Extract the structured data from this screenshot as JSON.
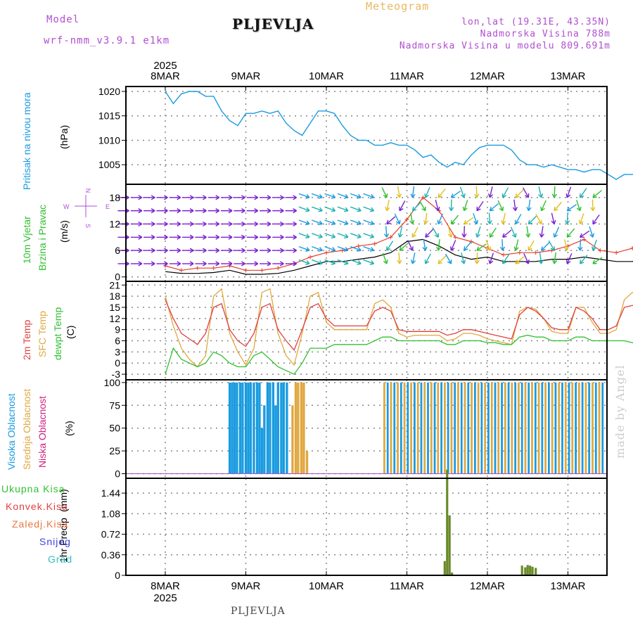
{
  "header": {
    "model_label": "Model",
    "model_name": "wrf-nmm_v3.9.1 e1km",
    "title": "PLJEVLJA",
    "subtitle": "Meteogram",
    "lonlat": "lon,lat (19.31E, 43.35N)",
    "elevation": "Nadmorska Visina 788m",
    "model_elevation": "Nadmorska Visina u modelu 809.691m"
  },
  "footer": {
    "station": "PLJEVLJA",
    "credit": "made by Angel"
  },
  "time_axis": {
    "year": "2025",
    "labels": [
      "8MAR",
      "9MAR",
      "10MAR",
      "11MAR",
      "12MAR",
      "13MAR"
    ]
  },
  "colors": {
    "pressure": "#1a9be0",
    "wind_speed": "#000000",
    "wind_gust": "#e04030",
    "temp_2m": "#e04040",
    "temp_sfc": "#e0a840",
    "dewpoint": "#30c030",
    "cloud_high": "#1a9be0",
    "cloud_mid": "#e0a840",
    "cloud_low": "#d02080",
    "precip_total": "#30c030",
    "precip_conv": "#e04040",
    "precip_snow": "#4040e0"
  },
  "chart_data": [
    {
      "type": "line",
      "ylabel": "Pritisak na nivou mora",
      "unit": "(hPa)",
      "ylim": [
        1001,
        1021
      ],
      "yticks": [
        1005,
        1010,
        1015,
        1020
      ],
      "grid": true,
      "x_days": [
        0,
        0.1,
        0.2,
        0.3,
        0.4,
        0.5,
        0.6,
        0.7,
        0.8,
        0.9,
        1.0,
        1.1,
        1.2,
        1.3,
        1.4,
        1.5,
        1.6,
        1.7,
        1.8,
        1.9,
        2.0,
        2.1,
        2.2,
        2.3,
        2.4,
        2.5,
        2.6,
        2.7,
        2.8,
        2.9,
        3.0,
        3.1,
        3.2,
        3.3,
        3.4,
        3.5,
        3.6,
        3.7,
        3.8,
        3.9,
        4.0,
        4.1,
        4.2,
        4.3,
        4.4,
        4.5,
        4.6,
        4.7,
        4.8,
        4.9,
        5.0,
        5.1,
        5.2,
        5.3,
        5.4,
        5.5,
        5.6,
        5.7,
        5.8,
        5.9,
        6.0
      ],
      "series": [
        {
          "values": [
            1020,
            1017.5,
            1019.5,
            1020,
            1020,
            1019,
            1019,
            1016,
            1014,
            1013,
            1015.5,
            1015.5,
            1016,
            1015.5,
            1016,
            1013.5,
            1012,
            1011,
            1013.5,
            1016,
            1016,
            1015.5,
            1013,
            1011,
            1010,
            1010,
            1009,
            1009,
            1009.5,
            1009,
            1009,
            1008,
            1006.5,
            1007,
            1005.5,
            1004.5,
            1005.5,
            1005,
            1007,
            1008.5,
            1009,
            1009,
            1009,
            1008,
            1006,
            1005,
            1005,
            1004.5,
            1005,
            1004.5,
            1004,
            1004,
            1003.5,
            1004,
            1004,
            1003,
            1002,
            1003,
            1003,
            1003.5,
            1004
          ]
        }
      ]
    },
    {
      "type": "line",
      "ylabel": "10m Vjetar Brzina i Pravac",
      "unit": "(m/s)",
      "compass": {
        "n": "N",
        "s": "S",
        "e": "E",
        "w": "W"
      },
      "ylim": [
        -1,
        21
      ],
      "yticks": [
        0,
        6,
        12,
        18
      ],
      "grid": true,
      "x_days": [
        0,
        0.2,
        0.4,
        0.6,
        0.8,
        1.0,
        1.2,
        1.4,
        1.6,
        1.8,
        2.0,
        2.2,
        2.4,
        2.6,
        2.8,
        3.0,
        3.2,
        3.4,
        3.6,
        3.8,
        4.0,
        4.2,
        4.4,
        4.6,
        4.8,
        5.0,
        5.2,
        5.4,
        5.6,
        5.8,
        6.0
      ],
      "series": [
        {
          "name": "speed",
          "values": [
            1.2,
            0.8,
            0.8,
            1.0,
            1.5,
            0.6,
            0.6,
            0.8,
            1.5,
            2.5,
            3.5,
            3.5,
            4.0,
            4.5,
            5.5,
            8.0,
            8.5,
            7.0,
            5.0,
            4.0,
            4.5,
            3.5,
            3.5,
            3.5,
            4.0,
            4.0,
            4.5,
            4.0,
            3.5,
            3.5,
            5.0
          ]
        },
        {
          "name": "gust",
          "values": [
            2.5,
            1.5,
            2.0,
            2.0,
            2.5,
            1.5,
            1.5,
            2.0,
            3.0,
            4.5,
            5.5,
            6.0,
            7.0,
            7.5,
            9.0,
            13.0,
            18.0,
            15.0,
            9.0,
            8.0,
            6.5,
            5.0,
            5.5,
            5.5,
            6.0,
            7.0,
            8.5,
            6.0,
            5.5,
            6.5,
            9.0
          ]
        }
      ]
    },
    {
      "type": "line",
      "ylabels": [
        "2m Temp",
        "SFC Temp",
        "dewpt Temp"
      ],
      "unit": "(C)",
      "ylim": [
        -4.5,
        22
      ],
      "yticks": [
        -3,
        0,
        3,
        6,
        9,
        12,
        15,
        18,
        21
      ],
      "grid": true,
      "x_days": [
        0,
        0.1,
        0.2,
        0.3,
        0.4,
        0.5,
        0.6,
        0.7,
        0.8,
        0.9,
        1.0,
        1.1,
        1.2,
        1.3,
        1.4,
        1.5,
        1.6,
        1.7,
        1.8,
        1.9,
        2.0,
        2.1,
        2.2,
        2.3,
        2.4,
        2.5,
        2.6,
        2.7,
        2.8,
        2.9,
        3.0,
        3.1,
        3.2,
        3.3,
        3.4,
        3.5,
        3.6,
        3.7,
        3.8,
        3.9,
        4.0,
        4.1,
        4.2,
        4.3,
        4.4,
        4.5,
        4.6,
        4.7,
        4.8,
        4.9,
        5.0,
        5.1,
        5.2,
        5.3,
        5.4,
        5.5,
        5.6,
        5.7,
        5.8,
        5.9,
        6.0
      ],
      "series": [
        {
          "name": "2m Temp",
          "values": [
            17,
            12,
            8,
            6.5,
            5,
            8,
            15,
            16,
            9,
            6,
            4.5,
            8,
            15,
            16,
            9,
            6,
            3.5,
            9,
            15,
            16,
            12,
            10,
            10,
            10,
            10,
            10,
            14,
            15,
            14,
            9,
            8.5,
            8.5,
            8.5,
            8.5,
            8.5,
            7.5,
            8,
            9,
            9,
            8.5,
            8,
            7.5,
            7,
            6.5,
            13,
            15,
            14,
            12,
            9.5,
            9,
            9,
            15,
            14,
            12,
            9,
            9,
            10,
            15,
            15.5,
            15.5,
            15.5
          ]
        },
        {
          "name": "SFC Temp",
          "values": [
            18,
            10,
            4,
            1,
            -1,
            2,
            18,
            20,
            8,
            3,
            -0.5,
            4,
            19,
            20,
            8,
            2,
            -0.5,
            8,
            18,
            19,
            11,
            9,
            9,
            9,
            9,
            9,
            16,
            17,
            15,
            8,
            7,
            7.5,
            7.5,
            7.5,
            7.5,
            6,
            6.5,
            8,
            8,
            7.5,
            6.5,
            6,
            5.5,
            5,
            14,
            15,
            14.5,
            12,
            8.5,
            8,
            8,
            15,
            15,
            11,
            8,
            8,
            9,
            17,
            19,
            19,
            19
          ]
        },
        {
          "name": "dewpt Temp",
          "values": [
            -3,
            4,
            1,
            0,
            -1,
            0,
            3,
            2,
            0,
            -1,
            -1,
            2,
            3,
            1,
            -1,
            -2,
            -3,
            0,
            4,
            4,
            4,
            5,
            5,
            5,
            5,
            5,
            6,
            7,
            7,
            6,
            6,
            6,
            6,
            6,
            6,
            5,
            5,
            6,
            6,
            6,
            5.5,
            5.5,
            5,
            5,
            7,
            7.5,
            7,
            7,
            6,
            6,
            6,
            7,
            7,
            6,
            6,
            6,
            6,
            6,
            5.5,
            5,
            5
          ]
        }
      ]
    },
    {
      "type": "bar",
      "ylabels": [
        "Visoka Oblacnost",
        "Srednja Oblacnost",
        "Niska Oblacnost"
      ],
      "unit": "(%)",
      "ylim": [
        -5,
        103
      ],
      "yticks": [
        0,
        25,
        50,
        75,
        100
      ],
      "grid": true,
      "bar_step_days": 0.0417,
      "x_days": [
        0.8,
        0.83,
        0.86,
        0.89,
        0.93,
        0.96,
        1.0,
        1.03,
        1.06,
        1.1,
        1.14,
        1.17,
        1.2,
        1.23,
        1.27,
        1.3,
        1.34,
        1.37,
        1.4,
        1.44,
        1.47,
        1.51,
        1.55,
        1.58,
        1.62,
        1.65,
        1.69,
        1.72,
        1.76,
        1.79,
        1.83,
        1.87,
        1.9,
        1.94,
        1.97,
        2.0,
        2.03,
        2.07,
        2.11,
        2.14,
        2.18,
        2.21,
        2.25,
        2.28,
        2.32,
        2.36,
        2.39,
        2.43,
        2.46,
        2.5,
        2.53,
        2.57,
        2.6,
        2.64,
        2.67,
        2.71,
        2.74,
        2.78,
        2.81,
        2.85,
        2.88,
        2.92,
        2.95,
        2.99
      ],
      "series": [
        {
          "name": "Visoka Oblacnost",
          "values": [
            100,
            100,
            100,
            100,
            100,
            100,
            100,
            100,
            100,
            100,
            100,
            100,
            50,
            75,
            100,
            100,
            100,
            75,
            100,
            100,
            100,
            100,
            0,
            0,
            0,
            0,
            0,
            0,
            0,
            0,
            0,
            0,
            0,
            0,
            0,
            0,
            0,
            0,
            0,
            0,
            0,
            0,
            0,
            0,
            0,
            0,
            0,
            0,
            0,
            0,
            0,
            0,
            0,
            0,
            0,
            0,
            0,
            0,
            0,
            0,
            0,
            0,
            0,
            0
          ]
        },
        {
          "name": "Srednja Oblacnost",
          "values": [
            0,
            0,
            0,
            0,
            0,
            0,
            0,
            0,
            0,
            0,
            0,
            0,
            0,
            0,
            0,
            0,
            0,
            0,
            0,
            0,
            0,
            0,
            0,
            75,
            100,
            100,
            100,
            100,
            25,
            0,
            0,
            0,
            0,
            0,
            0,
            0,
            0,
            0,
            0,
            0,
            0,
            0,
            0,
            0,
            0,
            0,
            0,
            0,
            0,
            0,
            0,
            0,
            0,
            0,
            0,
            0,
            0,
            0,
            0,
            0,
            0,
            0,
            0,
            0
          ]
        }
      ]
    },
    {
      "type": "bar",
      "ylabel": "1hr Precip",
      "unit": "(mm)",
      "ylim": [
        0,
        1.7
      ],
      "yticks": [
        0,
        0.36,
        0.72,
        1.08,
        1.44
      ],
      "grid": true,
      "legend": [
        "Ukupna Kisa",
        "Konvek.Kisa",
        "Zaledj.Kisa",
        "Snijeg",
        "Grad"
      ],
      "x_days": [
        3.47,
        3.5,
        3.53,
        3.56,
        3.6,
        4.43,
        4.47,
        4.5,
        4.53,
        4.56,
        4.6,
        4.63,
        5.1,
        5.3,
        5.9
      ],
      "series": [
        {
          "name": "Ukupna Kisa",
          "values": [
            0.25,
            1.85,
            1.05,
            0.05,
            0,
            0.17,
            0.14,
            0.18,
            0.17,
            0.15,
            0.13,
            0,
            0.01,
            0.01,
            0.01
          ]
        }
      ]
    }
  ]
}
